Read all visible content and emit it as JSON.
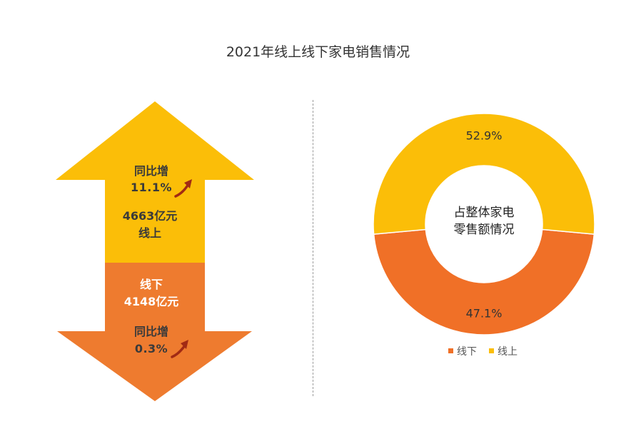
{
  "title": "2021年线上线下家电销售情况",
  "colors": {
    "online": "#FBBE08",
    "offline": "#EE7B2F",
    "donut_offline": "#F07027",
    "trend_arrow": "#A12A14"
  },
  "arrow": {
    "up": {
      "growth_label": "同比增",
      "growth_value": "11.1%",
      "amount": "4663亿元",
      "channel": "线上"
    },
    "down": {
      "channel": "线下",
      "amount": "4148亿元",
      "growth_label": "同比增",
      "growth_value": "0.3%"
    }
  },
  "chart_data": {
    "type": "pie",
    "donut": true,
    "center_label_lines": [
      "占整体家电",
      "零售额情况"
    ],
    "slices": [
      {
        "name": "线下",
        "value": 47.1,
        "label": "47.1%",
        "color": "#F07027"
      },
      {
        "name": "线上",
        "value": 52.9,
        "label": "52.9%",
        "color": "#FBBE08"
      }
    ],
    "legend": {
      "placement": "bottom",
      "items": [
        "线下",
        "线上"
      ]
    }
  }
}
